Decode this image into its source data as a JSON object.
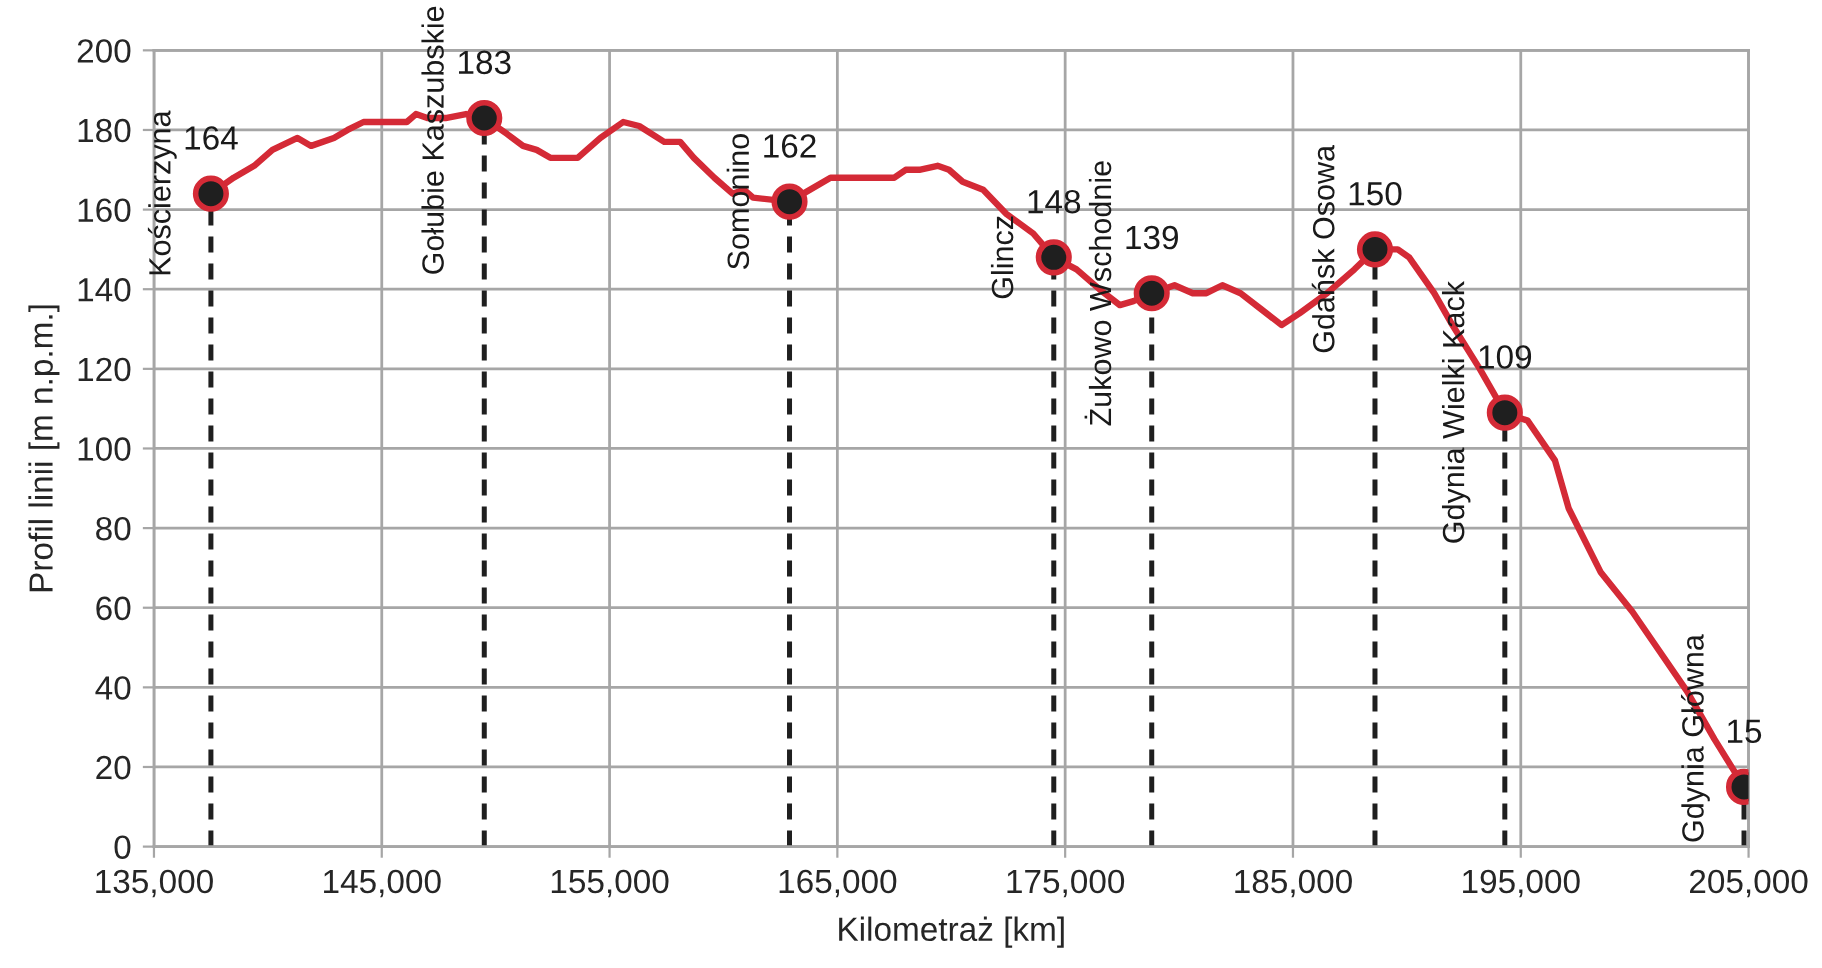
{
  "chart_data": {
    "type": "line",
    "xlabel": "Kilometraż [km]",
    "ylabel": "Profil linii [m n.p.m.]",
    "xlim": [
      135000,
      205000
    ],
    "xticks": [
      {
        "value": 135000,
        "label": "135,000"
      },
      {
        "value": 145000,
        "label": "145,000"
      },
      {
        "value": 155000,
        "label": "155,000"
      },
      {
        "value": 165000,
        "label": "165,000"
      },
      {
        "value": 175000,
        "label": "175,000"
      },
      {
        "value": 185000,
        "label": "185,000"
      },
      {
        "value": 195000,
        "label": "195,000"
      },
      {
        "value": 205000,
        "label": "205,000"
      }
    ],
    "ylim": [
      0,
      200
    ],
    "yticks": [
      0,
      20,
      40,
      60,
      80,
      100,
      120,
      140,
      160,
      180,
      200
    ],
    "grid": true,
    "series": [
      {
        "color": "#d42a36",
        "marker": "none",
        "line_style": "solid",
        "x": [
          137500,
          138500,
          139400,
          140200,
          141300,
          141900,
          142900,
          143500,
          144200,
          146100,
          146500,
          147000,
          147800,
          148700,
          149500,
          150500,
          151200,
          151800,
          152400,
          153600,
          154600,
          155600,
          156300,
          157400,
          158100,
          158700,
          159600,
          160400,
          160900,
          161300,
          162900,
          164700,
          165600,
          167500,
          168000,
          168600,
          169400,
          169900,
          170500,
          171400,
          172400,
          173600,
          174500,
          175500,
          176500,
          177400,
          178000,
          178800,
          179800,
          180600,
          181200,
          181900,
          182700,
          183600,
          184500,
          185300,
          186500,
          187700,
          188600,
          189600,
          190100,
          191200,
          192000,
          193200,
          194300,
          195300,
          196500,
          197100,
          198500,
          199900,
          201100,
          202300,
          203500,
          204800
        ],
        "values": [
          164,
          168,
          171,
          175,
          178,
          176,
          178,
          180,
          182,
          182,
          184,
          183,
          183,
          184,
          183,
          179,
          176,
          175,
          173,
          173,
          178,
          182,
          181,
          177,
          177,
          173,
          168,
          164,
          165,
          163,
          162,
          168,
          168,
          168,
          170,
          170,
          171,
          170,
          167,
          165,
          159,
          154,
          148,
          145,
          140,
          136,
          137,
          139,
          141,
          139,
          139,
          141,
          139,
          135,
          131,
          134,
          139,
          145,
          150,
          150,
          148,
          139,
          131,
          120,
          109,
          107,
          97,
          85,
          69,
          59,
          49,
          39,
          27,
          15
        ]
      },
      {
        "type": "lollipop",
        "color": "#1f1f1f",
        "marker": "circle",
        "line_style": "dashed",
        "x": [
          137500,
          149500,
          162900,
          174500,
          178800,
          188600,
          194300,
          204800
        ],
        "values": [
          164,
          183,
          162,
          148,
          139,
          150,
          109,
          15
        ],
        "value_labels": [
          "164",
          "183",
          "162",
          "148",
          "139",
          "150",
          "109",
          "15"
        ]
      }
    ],
    "annotations": [
      {
        "text": "Kościerzyna",
        "x": 137500,
        "y": 164
      },
      {
        "text": "Gołubie Kaszubskie",
        "x": 149500,
        "y": 183
      },
      {
        "text": "Somonino",
        "x": 162900,
        "y": 162
      },
      {
        "text": "Glincz",
        "x": 174500,
        "y": 148
      },
      {
        "text": "Żukowo Wschodnie",
        "x": 178800,
        "y": 139
      },
      {
        "text": "Gdańsk Osowa",
        "x": 188600,
        "y": 150
      },
      {
        "text": "Gdynia Wielki Kack",
        "x": 194300,
        "y": 109
      },
      {
        "text": "Gdynia Główna",
        "x": 204800,
        "y": 15
      }
    ]
  }
}
